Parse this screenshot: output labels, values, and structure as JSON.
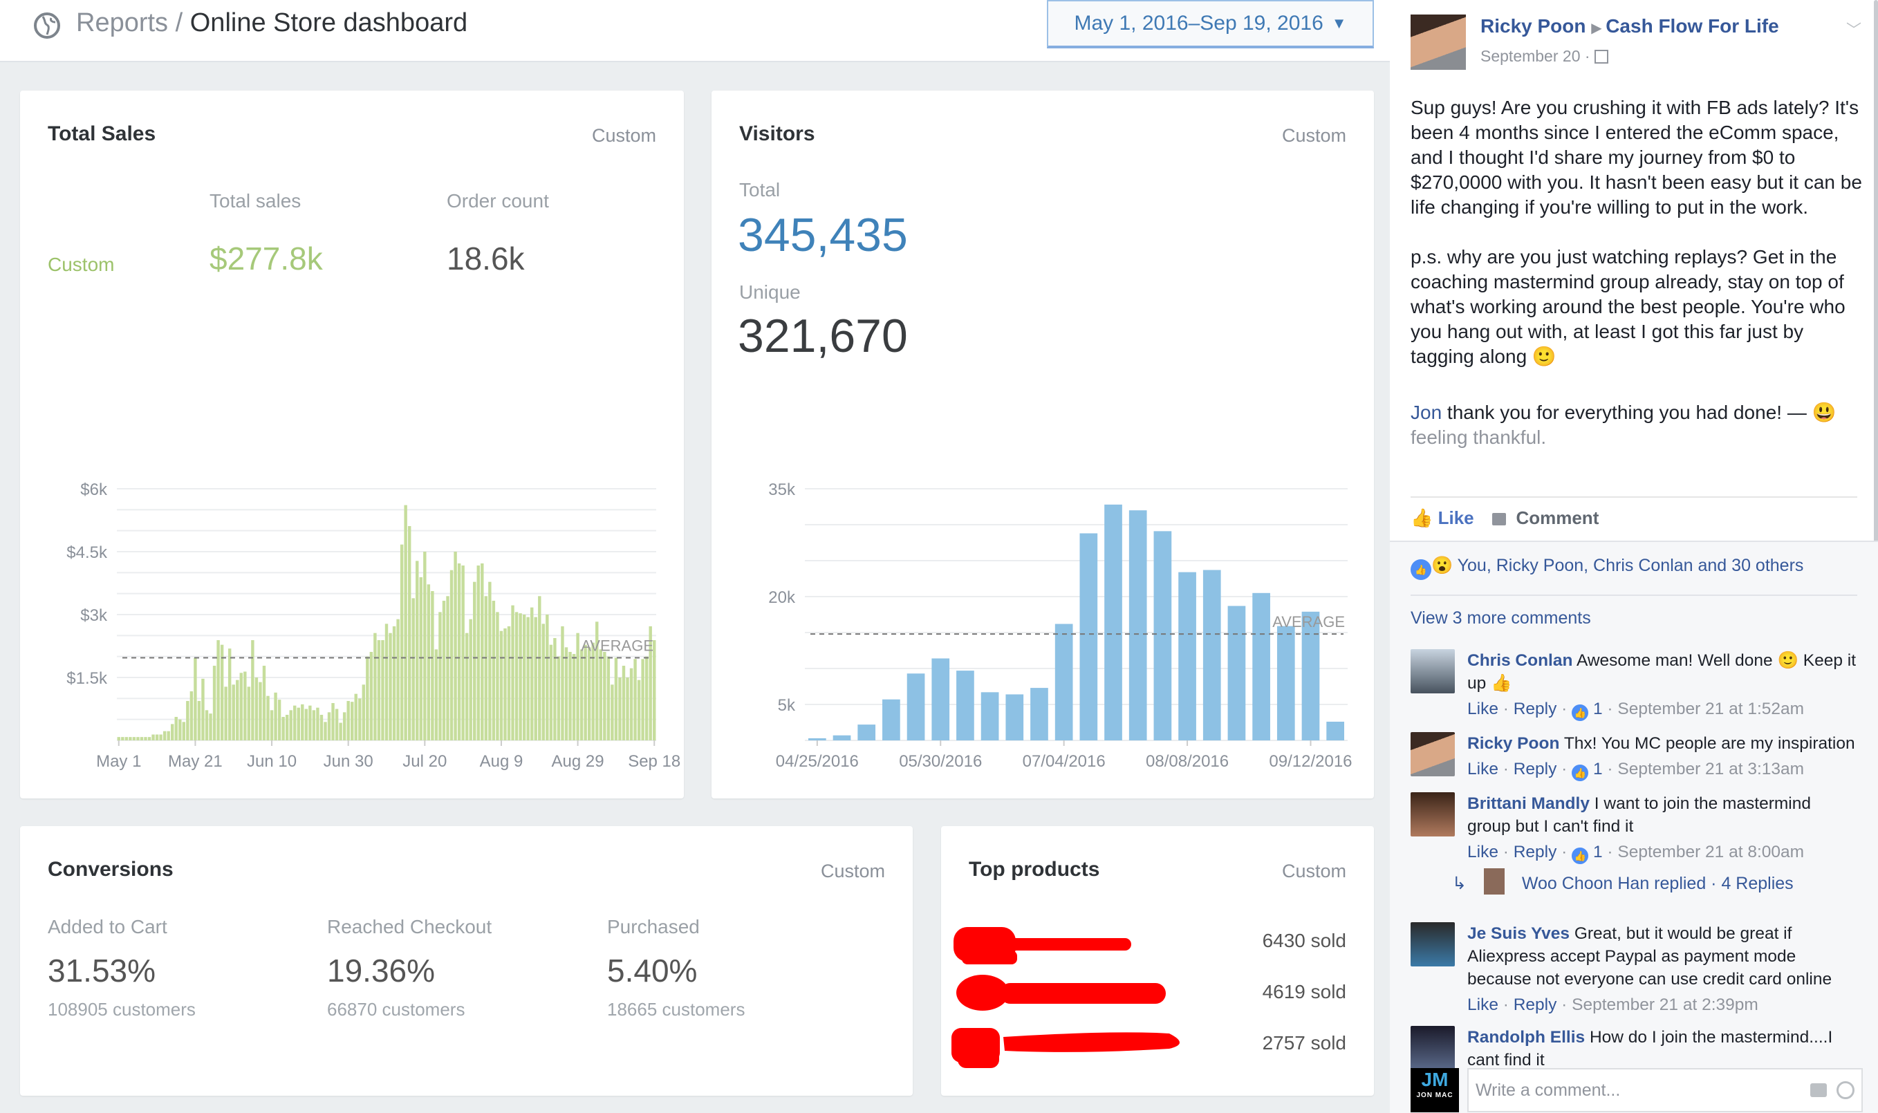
{
  "header": {
    "breadcrumb_parent": "Reports",
    "breadcrumb_separator": "/",
    "page_title": "Online Store dashboard",
    "date_range": "May 1, 2016–Sep 19, 2016",
    "icons": [
      "globe-icon",
      "caret-down-icon"
    ]
  },
  "total_sales": {
    "title": "Total Sales",
    "period": "Custom",
    "col_total_sales": "Total sales",
    "col_order_count": "Order count",
    "row_label": "Custom",
    "total_sales_value": "$277.8k",
    "order_count_value": "18.6k",
    "color": "#9cc26a"
  },
  "visitors": {
    "title": "Visitors",
    "period": "Custom",
    "total_label": "Total",
    "total_value": "345,435",
    "unique_label": "Unique",
    "unique_value": "321,670",
    "accent": "#3f82b9"
  },
  "conversions": {
    "title": "Conversions",
    "period": "Custom",
    "items": [
      {
        "label": "Added to Cart",
        "value": "31.53%",
        "customers": "108905 customers"
      },
      {
        "label": "Reached Checkout",
        "value": "19.36%",
        "customers": "66870 customers"
      },
      {
        "label": "Purchased",
        "value": "5.40%",
        "customers": "18665 customers"
      }
    ]
  },
  "top_products": {
    "title": "Top products",
    "period": "Custom",
    "items": [
      {
        "sold": "6430 sold"
      },
      {
        "sold": "4619 sold"
      },
      {
        "sold": "2757 sold"
      }
    ],
    "redaction_color": "#ff0000"
  },
  "chart_data": [
    {
      "type": "bar",
      "x_range": [
        "2016-05-01",
        "2016-09-18"
      ],
      "x_interval": "day",
      "ylim": [
        0,
        6000
      ],
      "grid": true,
      "y_ticks": [
        {
          "value": 1500,
          "label": "$1.5k"
        },
        {
          "value": 3000,
          "label": "$3k"
        },
        {
          "value": 4500,
          "label": "$4.5k"
        },
        {
          "value": 6000,
          "label": "$6k"
        }
      ],
      "x_ticks": [
        {
          "day": 0,
          "label": "May 1"
        },
        {
          "day": 20,
          "label": "May 21"
        },
        {
          "day": 40,
          "label": "Jun 10"
        },
        {
          "day": 60,
          "label": "Jun 30"
        },
        {
          "day": 80,
          "label": "Jul 20"
        },
        {
          "day": 100,
          "label": "Aug 9"
        },
        {
          "day": 120,
          "label": "Aug 29"
        },
        {
          "day": 140,
          "label": "Sep 18"
        }
      ],
      "average": 1970,
      "average_label": "AVERAGE",
      "color": "#c6dd9c",
      "values": [
        80,
        80,
        80,
        80,
        80,
        80,
        80,
        80,
        80,
        140,
        140,
        140,
        220,
        220,
        390,
        560,
        500,
        440,
        940,
        1170,
        1970,
        940,
        1470,
        720,
        640,
        1780,
        2390,
        2280,
        1280,
        2190,
        1330,
        1440,
        1610,
        1640,
        1280,
        2390,
        1500,
        1390,
        1780,
        1060,
        720,
        1140,
        970,
        560,
        610,
        720,
        830,
        780,
        860,
        750,
        830,
        720,
        780,
        610,
        440,
        670,
        890,
        750,
        420,
        670,
        940,
        920,
        1110,
        1000,
        1330,
        2000,
        2110,
        2560,
        2390,
        2390,
        2780,
        2560,
        2720,
        2890,
        4670,
        5610,
        5110,
        3390,
        4280,
        3890,
        4500,
        3720,
        3560,
        2170,
        3060,
        3330,
        3440,
        4060,
        4500,
        4220,
        4170,
        2560,
        2890,
        3780,
        4170,
        4220,
        3440,
        3780,
        3330,
        3060,
        2610,
        2670,
        2720,
        3220,
        3060,
        3030,
        3000,
        2940,
        3170,
        2940,
        3440,
        2780,
        3000,
        2280,
        2440,
        2000,
        2720,
        2220,
        2110,
        2060,
        2560,
        2170,
        2280,
        2220,
        2330,
        2830,
        2170,
        2110,
        2000,
        1330,
        1970,
        1500,
        1780,
        1500,
        1720,
        1940,
        1440,
        1940,
        2000,
        2720,
        2390
      ]
    },
    {
      "type": "bar",
      "ylim": [
        0,
        35000
      ],
      "grid": true,
      "y_ticks": [
        {
          "value": 5000,
          "label": "5k"
        },
        {
          "value": 20000,
          "label": "20k"
        },
        {
          "value": 35000,
          "label": "35k"
        }
      ],
      "categories": [
        "04/25/2016",
        "05/02/2016",
        "05/09/2016",
        "05/16/2016",
        "05/23/2016",
        "05/30/2016",
        "06/06/2016",
        "06/13/2016",
        "06/20/2016",
        "06/27/2016",
        "07/04/2016",
        "07/11/2016",
        "07/18/2016",
        "07/25/2016",
        "08/01/2016",
        "08/08/2016",
        "08/15/2016",
        "08/22/2016",
        "08/29/2016",
        "09/05/2016",
        "09/12/2016",
        "09/19/2016"
      ],
      "x_tick_labels": [
        "04/25/2016",
        "05/30/2016",
        "07/04/2016",
        "08/08/2016",
        "09/12/2016"
      ],
      "average": 14800,
      "average_label": "AVERAGE",
      "color": "#8dc1e4",
      "values": [
        300,
        700,
        2200,
        5700,
        9300,
        11400,
        9700,
        6700,
        6400,
        7300,
        16200,
        28800,
        32800,
        32000,
        29100,
        23400,
        23700,
        18700,
        20500,
        15900,
        17900,
        2600
      ]
    }
  ],
  "post": {
    "author": "Ricky Poon",
    "group": "Cash Flow For Life",
    "date": "September 20",
    "audience_icon": "group-icon",
    "paragraph1": "Sup guys! Are you crushing it with FB ads lately? It's been 4 months since I entered the eComm space, and I thought I'd share my journey from $0 to $270,0000 with you. It hasn't been easy but it can be life changing if you're willing to put in the work.",
    "paragraph2": "p.s. why are you just watching replays? Get in the coaching mastermind group already, stay on top of what's working around the best people. You're who you hang out with, at least I got this far just by tagging along 🙂",
    "tag_name": "Jon",
    "tag_text": " thank you for everything you had done! — 😃",
    "feeling": "feeling thankful.",
    "like_label": "Like",
    "comment_label": "Comment",
    "reactions_text": "You, Ricky Poon, Chris Conlan and 30 others",
    "view_more": "View 3 more comments",
    "link_color": "#365899",
    "comments": [
      {
        "name": "Chris Conlan",
        "text": "Awesome man! Well done 🙂 Keep it up 👍",
        "likes": "1",
        "time": "September 21 at 1:52am"
      },
      {
        "name": "Ricky Poon",
        "text": "Thx! You MC people are my inspiration",
        "likes": "1",
        "time": "September 21 at 3:13am"
      },
      {
        "name": "Brittani Mandly",
        "text": "I want to join the mastermind group but I can't find it",
        "likes": "1",
        "time": "September 21 at 8:00am"
      },
      {
        "name": "Je Suis Yves",
        "text": "Great, but it would be great if Aliexpress accept Paypal as payment mode because not everyone can use credit card online",
        "time": "September 21 at 2:39pm"
      },
      {
        "name": "Randolph Ellis",
        "text": "How do I join the mastermind....I cant find it"
      }
    ],
    "reply_summary": "Woo Choon Han replied · 4 Replies",
    "like_action": "Like",
    "reply_action": "Reply",
    "sep": " · ",
    "comment_placeholder": "Write a comment...",
    "commenter_avatar": "JM",
    "commenter_avatar_sub": "JON MAC"
  }
}
